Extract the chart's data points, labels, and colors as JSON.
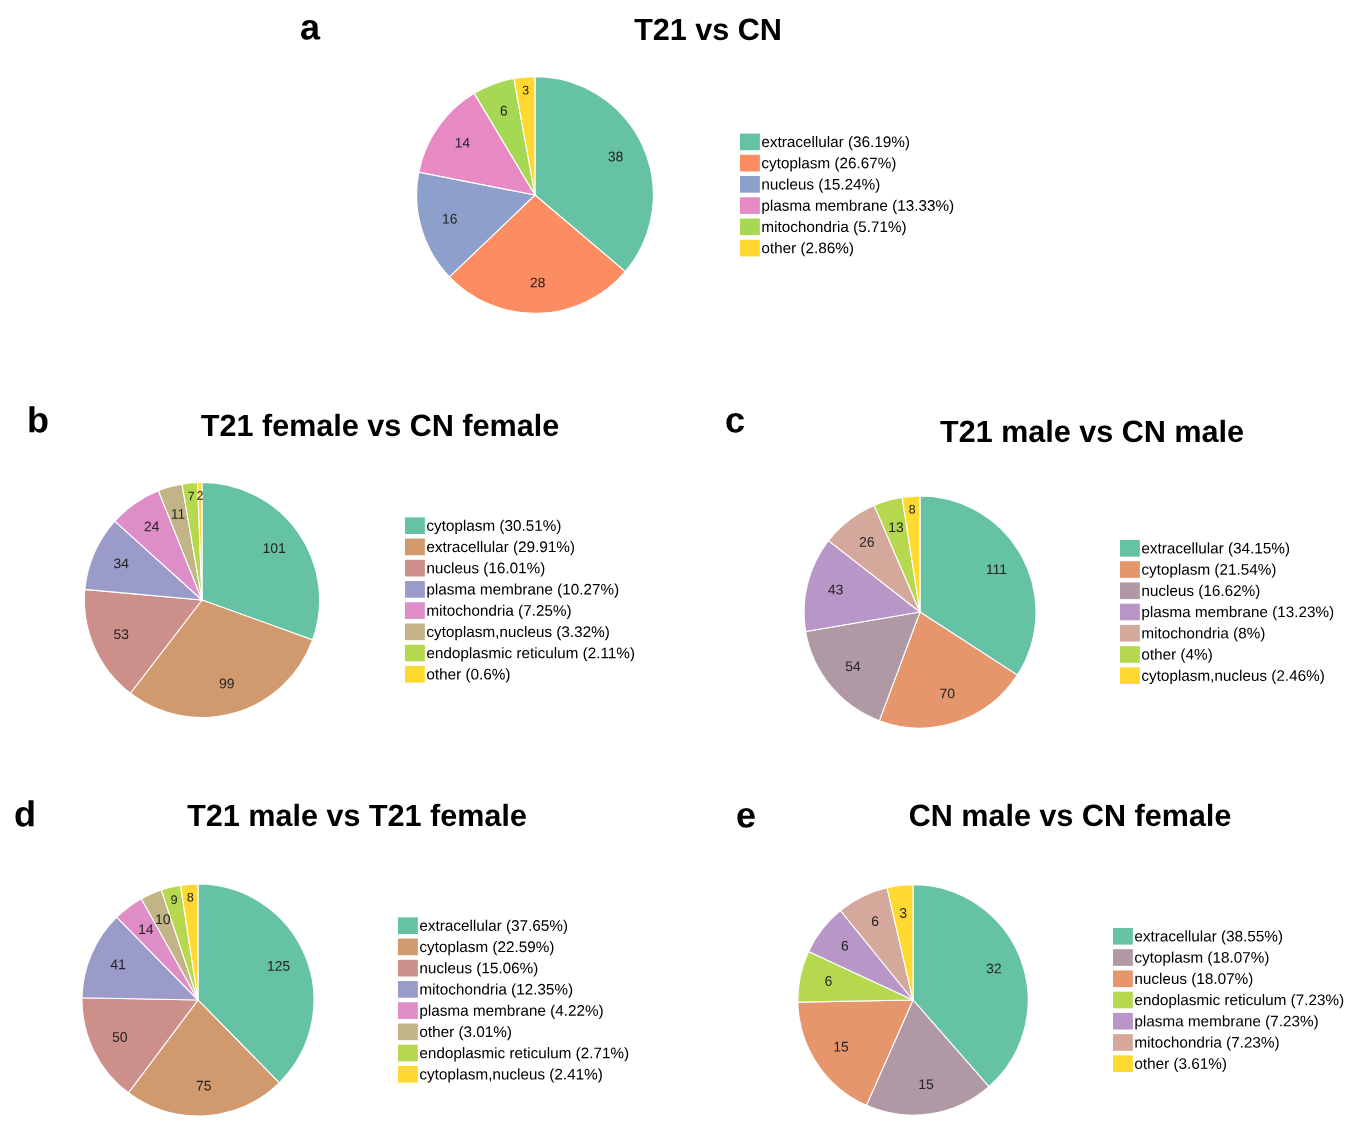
{
  "chart_data": [
    {
      "type": "pie",
      "title": "T21 vs CN",
      "annotations": [
        "a"
      ],
      "data_labels": true,
      "legend": "right",
      "categories": [
        "extracellular (36.19%)",
        "cytoplasm (26.67%)",
        "nucleus (15.24%)",
        "plasma membrane (13.33%)",
        "mitochondria (5.71%)",
        "other (2.86%)"
      ],
      "values": [
        38,
        28,
        16,
        14,
        6,
        3
      ],
      "colors": [
        "#66c2a5",
        "#fc8d62",
        "#8da0cb",
        "#e78ac3",
        "#a6d854",
        "#ffd92f"
      ]
    },
    {
      "type": "pie",
      "title": "T21 female vs CN female",
      "annotations": [
        "b"
      ],
      "data_labels": true,
      "legend": "right",
      "categories": [
        "cytoplasm (30.51%)",
        "extracellular (29.91%)",
        "nucleus (16.01%)",
        "plasma membrane (10.27%)",
        "mitochondria (7.25%)",
        "cytoplasm,nucleus (3.32%)",
        "endoplasmic reticulum (2.11%)",
        "other (0.6%)"
      ],
      "values": [
        101,
        99,
        53,
        34,
        24,
        11,
        7,
        2
      ],
      "colors": [
        "#66c2a5",
        "#d09a6e",
        "#cc8f8a",
        "#9b9bc9",
        "#df8dc6",
        "#c2b487",
        "#b5d84f",
        "#ffd92f"
      ]
    },
    {
      "type": "pie",
      "title": "T21 male vs CN male",
      "annotations": [
        "c"
      ],
      "data_labels": true,
      "legend": "right",
      "categories": [
        "extracellular (34.15%)",
        "cytoplasm (21.54%)",
        "nucleus (16.62%)",
        "plasma membrane (13.23%)",
        "mitochondria (8%)",
        "other (4%)",
        "cytoplasm,nucleus (2.46%)"
      ],
      "values": [
        111,
        70,
        54,
        43,
        26,
        13,
        8
      ],
      "colors": [
        "#66c2a5",
        "#e5966d",
        "#b099a4",
        "#b996c8",
        "#d4a89b",
        "#b5d84f",
        "#ffd92f"
      ]
    },
    {
      "type": "pie",
      "title": "T21 male vs T21 female",
      "annotations": [
        "d"
      ],
      "data_labels": true,
      "legend": "right",
      "categories": [
        "extracellular (37.65%)",
        "cytoplasm (22.59%)",
        "nucleus (15.06%)",
        "mitochondria (12.35%)",
        "plasma membrane (4.22%)",
        "other (3.01%)",
        "endoplasmic reticulum (2.71%)",
        "cytoplasm,nucleus (2.41%)"
      ],
      "values": [
        125,
        75,
        50,
        41,
        14,
        10,
        9,
        8
      ],
      "colors": [
        "#66c2a5",
        "#d09a6e",
        "#cc8f8a",
        "#9b9bc9",
        "#df8dc6",
        "#c2b487",
        "#b5d84f",
        "#ffd92f"
      ]
    },
    {
      "type": "pie",
      "title": "CN male vs CN female",
      "annotations": [
        "e"
      ],
      "data_labels": true,
      "legend": "right",
      "categories": [
        "extracellular (38.55%)",
        "cytoplasm (18.07%)",
        "nucleus (18.07%)",
        "endoplasmic reticulum (7.23%)",
        "plasma membrane (7.23%)",
        "mitochondria (7.23%)",
        "other (3.61%)"
      ],
      "values": [
        32,
        15,
        15,
        6,
        6,
        6,
        3
      ],
      "colors": [
        "#66c2a5",
        "#b099a4",
        "#e5966d",
        "#b5d84f",
        "#b996c8",
        "#d4a89b",
        "#ffd92f"
      ]
    }
  ]
}
